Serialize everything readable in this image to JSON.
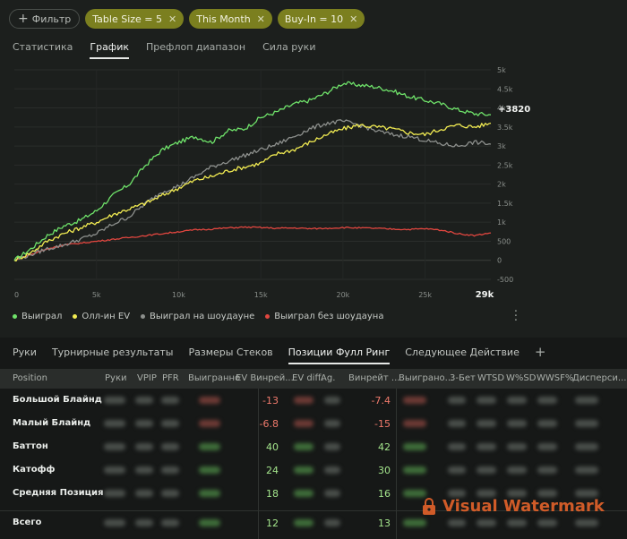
{
  "filters": {
    "add_label": "Фильтр",
    "chips": [
      "Table Size = 5",
      "This Month",
      "Buy-In = 10"
    ]
  },
  "top_tabs": [
    "Статистика",
    "График",
    "Префлоп диапазон",
    "Сила руки"
  ],
  "top_tabs_active": 1,
  "colors": {
    "accent_chip": "#7b7f1f",
    "won": "#6fe36a",
    "all_in_ev": "#f2ec52",
    "won_showdown": "#8c8f8c",
    "won_non_showdown": "#e0463f",
    "positive": "#a4e58c",
    "negative": "#f07a6c"
  },
  "chart_data": {
    "type": "line",
    "x_range": [
      0,
      29000
    ],
    "ylim": [
      -500,
      5000
    ],
    "x_ticks": [
      "0",
      "5k",
      "10k",
      "15k",
      "20k",
      "25k",
      "29k"
    ],
    "x_tick_values": [
      0,
      5000,
      10000,
      15000,
      20000,
      25000,
      29000
    ],
    "y_ticks": [
      "5k",
      "4.5k",
      "4k",
      "3.5k",
      "3k",
      "2.5k",
      "2k",
      "1.5k",
      "1k",
      "500",
      "0",
      "-500"
    ],
    "y_tick_values": [
      5000,
      4500,
      4000,
      3500,
      3000,
      2500,
      2000,
      1500,
      1000,
      500,
      0,
      -500
    ],
    "end_label": "+3820",
    "grid": true,
    "series": [
      {
        "name": "Выиграл",
        "color": "#6fe36a",
        "x": [
          0,
          1000,
          2000,
          3000,
          4000,
          5000,
          6000,
          7000,
          8000,
          9000,
          10000,
          11000,
          12000,
          13000,
          14000,
          15000,
          16000,
          17000,
          18000,
          19000,
          20000,
          21000,
          22000,
          23000,
          24000,
          25000,
          26000,
          27000,
          28000,
          29000
        ],
        "y": [
          0,
          300,
          650,
          900,
          1050,
          1300,
          1700,
          2000,
          2500,
          2900,
          3100,
          3250,
          3100,
          3400,
          3450,
          3750,
          3900,
          4100,
          4200,
          4400,
          4650,
          4600,
          4550,
          4450,
          4300,
          4200,
          4100,
          3950,
          3850,
          3820
        ]
      },
      {
        "name": "Олл-ин EV",
        "color": "#f2ec52",
        "x": [
          0,
          1000,
          2000,
          3000,
          4000,
          5000,
          6000,
          7000,
          8000,
          9000,
          10000,
          11000,
          12000,
          13000,
          14000,
          15000,
          16000,
          17000,
          18000,
          19000,
          20000,
          21000,
          22000,
          23000,
          24000,
          25000,
          26000,
          27000,
          28000,
          29000
        ],
        "y": [
          0,
          200,
          500,
          700,
          850,
          1000,
          1200,
          1350,
          1500,
          1700,
          1900,
          2100,
          2200,
          2350,
          2450,
          2550,
          2800,
          2900,
          3100,
          3300,
          3450,
          3550,
          3500,
          3450,
          3350,
          3300,
          3450,
          3550,
          3500,
          3600
        ]
      },
      {
        "name": "Выиграл на шоудауне",
        "color": "#8c8f8c",
        "x": [
          0,
          1000,
          2000,
          3000,
          4000,
          5000,
          6000,
          7000,
          8000,
          9000,
          10000,
          11000,
          12000,
          13000,
          14000,
          15000,
          16000,
          17000,
          18000,
          19000,
          20000,
          21000,
          22000,
          23000,
          24000,
          25000,
          26000,
          27000,
          28000,
          29000
        ],
        "y": [
          0,
          150,
          300,
          400,
          550,
          700,
          950,
          1150,
          1500,
          1800,
          1950,
          2200,
          2450,
          2600,
          2750,
          2900,
          3050,
          3250,
          3450,
          3600,
          3650,
          3550,
          3400,
          3300,
          3250,
          3150,
          3050,
          3000,
          3100,
          3050
        ]
      },
      {
        "name": "Выиграл без шоудауна",
        "color": "#e0463f",
        "x": [
          0,
          1000,
          2000,
          3000,
          4000,
          5000,
          6000,
          7000,
          8000,
          9000,
          10000,
          11000,
          12000,
          13000,
          14000,
          15000,
          16000,
          17000,
          18000,
          19000,
          20000,
          21000,
          22000,
          23000,
          24000,
          25000,
          26000,
          27000,
          28000,
          29000
        ],
        "y": [
          0,
          150,
          300,
          400,
          450,
          500,
          550,
          600,
          650,
          700,
          750,
          800,
          820,
          850,
          870,
          860,
          840,
          850,
          830,
          840,
          860,
          850,
          840,
          820,
          810,
          830,
          790,
          700,
          650,
          720
        ]
      }
    ]
  },
  "bottom_tabs": [
    "Руки",
    "Турнирные результаты",
    "Размеры Стеков",
    "Позиции Фулл Ринг",
    "Следующее Действие"
  ],
  "bottom_tabs_active": 3,
  "table": {
    "headers": [
      "Position",
      "Руки",
      "VPIP",
      "PFR",
      "Выигранно",
      "EV Винрей...",
      "EV diff.",
      "Ag.",
      "Винрейт ...",
      "Выиграно...",
      "3-Бет",
      "WTSD",
      "W%SD",
      "WWSF%",
      "Дисперси..."
    ],
    "rows": [
      {
        "position": "Большой Блайнд",
        "ev_winrate": "-13",
        "winrate": "-7.4",
        "ev_sign": "neg",
        "wr_sign": "neg"
      },
      {
        "position": "Малый Блайнд",
        "ev_winrate": "-6.8",
        "winrate": "-15",
        "ev_sign": "neg",
        "wr_sign": "neg"
      },
      {
        "position": "Баттон",
        "ev_winrate": "40",
        "winrate": "42",
        "ev_sign": "pos",
        "wr_sign": "pos"
      },
      {
        "position": "Катофф",
        "ev_winrate": "24",
        "winrate": "30",
        "ev_sign": "pos",
        "wr_sign": "pos"
      },
      {
        "position": "Средняя Позиция",
        "ev_winrate": "18",
        "winrate": "16",
        "ev_sign": "pos",
        "wr_sign": "pos"
      }
    ],
    "total": {
      "position": "Всего",
      "ev_winrate": "12",
      "winrate": "13"
    }
  },
  "watermark": {
    "text": "Visual Watermark"
  }
}
